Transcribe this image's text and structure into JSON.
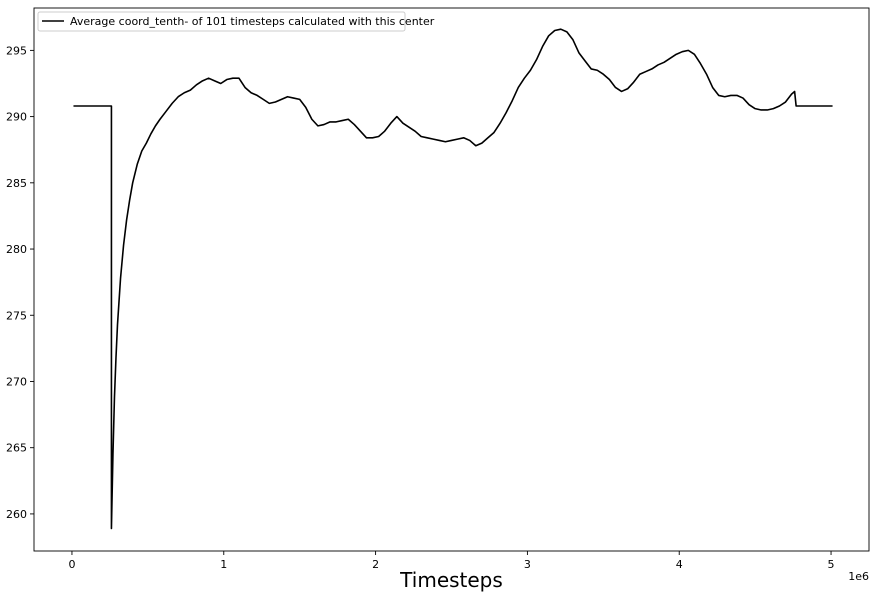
{
  "chart_data": {
    "type": "line",
    "title": "",
    "xlabel": "Timesteps",
    "ylabel": "",
    "x_offset_label": "1e6",
    "xlim": [
      -0.25,
      5.25
    ],
    "ylim": [
      257.2,
      298.2
    ],
    "x_ticks": [
      0,
      1,
      2,
      3,
      4,
      5
    ],
    "x_tick_labels": [
      "0",
      "1",
      "2",
      "3",
      "4",
      "5"
    ],
    "y_ticks": [
      260,
      265,
      270,
      275,
      280,
      285,
      290,
      295
    ],
    "y_tick_labels": [
      "260",
      "265",
      "270",
      "275",
      "280",
      "285",
      "290",
      "295"
    ],
    "grid": false,
    "legend_position": "top-left",
    "series": [
      {
        "name": "Average coord_tenth- of 101 timesteps calculated with this center",
        "color": "#000000",
        "x": [
          0.01,
          0.26,
          0.26,
          0.27,
          0.28,
          0.29,
          0.3,
          0.32,
          0.34,
          0.36,
          0.38,
          0.4,
          0.43,
          0.46,
          0.49,
          0.52,
          0.55,
          0.58,
          0.62,
          0.66,
          0.7,
          0.74,
          0.78,
          0.82,
          0.86,
          0.9,
          0.94,
          0.98,
          1.02,
          1.06,
          1.1,
          1.14,
          1.18,
          1.22,
          1.26,
          1.3,
          1.34,
          1.38,
          1.42,
          1.46,
          1.5,
          1.54,
          1.58,
          1.62,
          1.66,
          1.7,
          1.74,
          1.78,
          1.82,
          1.86,
          1.9,
          1.94,
          1.98,
          2.02,
          2.06,
          2.1,
          2.14,
          2.18,
          2.22,
          2.26,
          2.3,
          2.34,
          2.38,
          2.42,
          2.46,
          2.5,
          2.54,
          2.58,
          2.62,
          2.66,
          2.7,
          2.74,
          2.78,
          2.82,
          2.86,
          2.9,
          2.94,
          2.98,
          3.02,
          3.06,
          3.1,
          3.14,
          3.18,
          3.22,
          3.26,
          3.3,
          3.34,
          3.38,
          3.42,
          3.46,
          3.5,
          3.54,
          3.58,
          3.62,
          3.66,
          3.7,
          3.74,
          3.78,
          3.82,
          3.86,
          3.9,
          3.94,
          3.98,
          4.02,
          4.06,
          4.1,
          4.14,
          4.18,
          4.22,
          4.26,
          4.3,
          4.34,
          4.38,
          4.42,
          4.46,
          4.5,
          4.54,
          4.58,
          4.62,
          4.66,
          4.7,
          4.74,
          4.76,
          4.77,
          4.8,
          5.01
        ],
        "y": [
          290.8,
          290.8,
          258.9,
          264.5,
          268.8,
          271.8,
          274.3,
          277.8,
          280.3,
          282.2,
          283.7,
          285.0,
          286.4,
          287.4,
          288.0,
          288.7,
          289.3,
          289.8,
          290.4,
          291.0,
          291.5,
          291.8,
          292.0,
          292.4,
          292.7,
          292.9,
          292.7,
          292.5,
          292.8,
          292.9,
          292.9,
          292.2,
          291.8,
          291.6,
          291.3,
          291.0,
          291.1,
          291.3,
          291.5,
          291.4,
          291.3,
          290.7,
          289.8,
          289.3,
          289.4,
          289.6,
          289.6,
          289.7,
          289.8,
          289.4,
          288.9,
          288.4,
          288.4,
          288.5,
          288.9,
          289.5,
          290.0,
          289.5,
          289.2,
          288.9,
          288.5,
          288.4,
          288.3,
          288.2,
          288.1,
          288.2,
          288.3,
          288.4,
          288.2,
          287.8,
          288.0,
          288.4,
          288.8,
          289.5,
          290.3,
          291.2,
          292.2,
          292.9,
          293.5,
          294.3,
          295.3,
          296.1,
          296.5,
          296.6,
          296.4,
          295.8,
          294.8,
          294.2,
          293.6,
          293.5,
          293.2,
          292.8,
          292.2,
          291.9,
          292.1,
          292.6,
          293.2,
          293.4,
          293.6,
          293.9,
          294.1,
          294.4,
          294.7,
          294.9,
          295.0,
          294.7,
          294.0,
          293.2,
          292.2,
          291.6,
          291.5,
          291.6,
          291.6,
          291.4,
          290.9,
          290.6,
          290.5,
          290.5,
          290.6,
          290.8,
          291.1,
          291.7,
          291.9,
          290.8,
          290.8,
          290.8
        ]
      }
    ]
  }
}
